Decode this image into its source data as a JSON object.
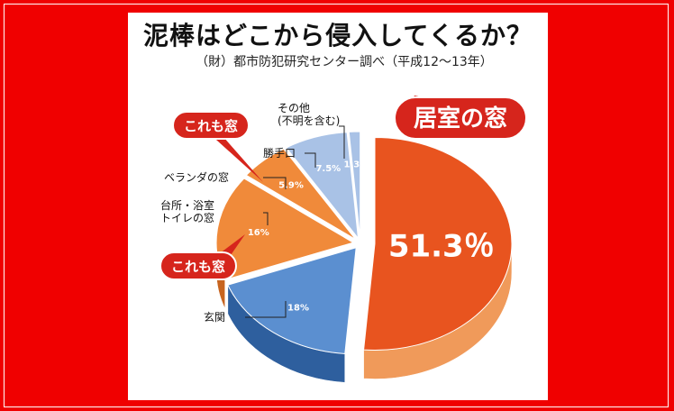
{
  "colors": {
    "frame": "#f00000",
    "panel": "#ffffff",
    "callout": "#d6251c",
    "slice_main": "#e8541f",
    "slice_orange": "#f08a3a",
    "slice_blue": "#5b8fd0",
    "slice_lightblue": "#a9c2e6"
  },
  "title": "泥棒はどこから侵入してくるか？",
  "subtitle": "（財）都市防犯研究センター調べ（平成12〜13年）",
  "callouts": {
    "main": "居室の窓",
    "top_left": "これも窓",
    "bottom_left": "これも窓"
  },
  "chart_data": {
    "type": "pie",
    "slices": [
      {
        "label": "居室の窓",
        "value": 51.3,
        "value_text": "51.3％"
      },
      {
        "label": "玄関",
        "value": 18,
        "value_text": "18%"
      },
      {
        "label": "台所・浴室 トイレの窓",
        "label_lines": [
          "台所・浴室",
          "トイレの窓"
        ],
        "value": 16,
        "value_text": "16%"
      },
      {
        "label": "ベランダの窓",
        "value": 5.9,
        "value_text": "5.9%"
      },
      {
        "label": "勝手口",
        "value": 7.5,
        "value_text": "7.5%"
      },
      {
        "label": "その他 (不明を含む)",
        "label_lines": [
          "その他",
          "(不明を含む)"
        ],
        "value": 1.3,
        "value_text": "1.3%"
      }
    ]
  }
}
